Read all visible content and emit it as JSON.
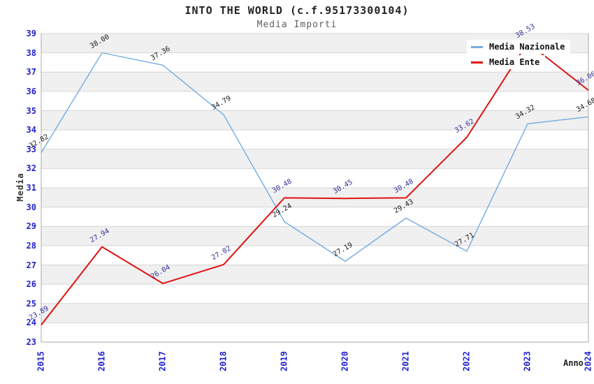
{
  "header": {
    "title": "INTO THE WORLD (c.f.95173300104)",
    "subtitle": "Media Importi"
  },
  "chart_data": {
    "type": "line",
    "title": "INTO THE WORLD (c.f.95173300104)",
    "subtitle": "Media Importi",
    "xlabel": "Anno",
    "ylabel": "Media",
    "categories": [
      "2015",
      "2016",
      "2017",
      "2018",
      "2019",
      "2020",
      "2021",
      "2022",
      "2023",
      "2024"
    ],
    "series": [
      {
        "name": "Media Nazionale",
        "color": "#74ACE0",
        "label_color": "#1a1a1a",
        "line_width": 1.4,
        "values": [
          32.82,
          38.0,
          37.36,
          34.79,
          29.24,
          27.19,
          29.43,
          27.71,
          34.32,
          34.68
        ]
      },
      {
        "name": "Media Ente",
        "color": "#E01212",
        "label_color": "#333399",
        "line_width": 2,
        "values": [
          23.89,
          27.94,
          26.04,
          27.02,
          30.48,
          30.45,
          30.48,
          33.62,
          38.53,
          36.06
        ]
      }
    ],
    "ylim": [
      23,
      39
    ],
    "ytick_step": 1,
    "grid": true,
    "legend_position": "top-right",
    "colors": {
      "tick_labels": "#1f1fce",
      "band_fill": "#f0f0f0",
      "gridline": "#d6d6d6",
      "plot_border": "#aaaaaa",
      "background": "#ffffff"
    }
  }
}
